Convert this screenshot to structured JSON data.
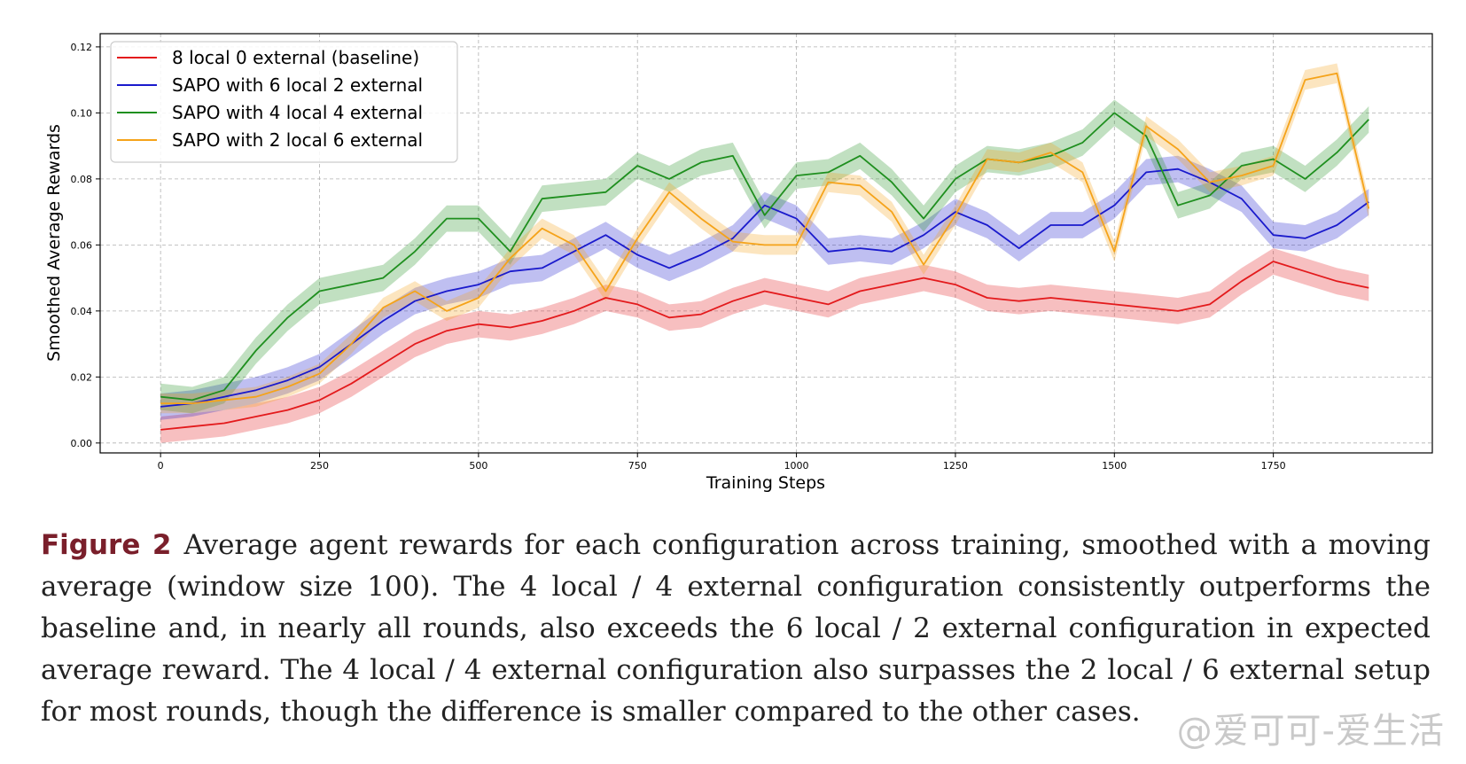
{
  "chart_data": {
    "type": "line",
    "xlabel": "Training Steps",
    "ylabel": "Smoothed Average Rewards",
    "xlim": [
      -95,
      2000
    ],
    "ylim": [
      -0.003,
      0.124
    ],
    "xticks": [
      0,
      250,
      500,
      750,
      1000,
      1250,
      1500,
      1750
    ],
    "xtick_labels": [
      "0",
      "250",
      "500",
      "750",
      "1000",
      "1250",
      "1500",
      "1750"
    ],
    "yticks": [
      0.0,
      0.02,
      0.04,
      0.06,
      0.08,
      0.1,
      0.12
    ],
    "ytick_labels": [
      "0.00",
      "0.02",
      "0.04",
      "0.06",
      "0.08",
      "0.10",
      "0.12"
    ],
    "grid": true,
    "legend_position": "top-left",
    "series": [
      {
        "name": "8 local 0 external (baseline)",
        "color": "#e31a1c",
        "x": [
          0,
          50,
          100,
          150,
          200,
          250,
          300,
          350,
          400,
          450,
          500,
          550,
          600,
          650,
          700,
          750,
          800,
          850,
          900,
          950,
          1000,
          1050,
          1100,
          1150,
          1200,
          1250,
          1300,
          1350,
          1400,
          1450,
          1500,
          1550,
          1600,
          1650,
          1700,
          1750,
          1800,
          1850,
          1900
        ],
        "y": [
          0.004,
          0.005,
          0.006,
          0.008,
          0.01,
          0.013,
          0.018,
          0.024,
          0.03,
          0.034,
          0.036,
          0.035,
          0.037,
          0.04,
          0.044,
          0.042,
          0.038,
          0.039,
          0.043,
          0.046,
          0.044,
          0.042,
          0.046,
          0.048,
          0.05,
          0.048,
          0.044,
          0.043,
          0.044,
          0.043,
          0.042,
          0.041,
          0.04,
          0.042,
          0.049,
          0.055,
          0.052,
          0.049,
          0.047
        ],
        "band": 0.004
      },
      {
        "name": "SAPO with 6 local 2 external",
        "color": "#1a1acc",
        "x": [
          0,
          50,
          100,
          150,
          200,
          250,
          300,
          350,
          400,
          450,
          500,
          550,
          600,
          650,
          700,
          750,
          800,
          850,
          900,
          950,
          1000,
          1050,
          1100,
          1150,
          1200,
          1250,
          1300,
          1350,
          1400,
          1450,
          1500,
          1550,
          1600,
          1650,
          1700,
          1750,
          1800,
          1850,
          1900
        ],
        "y": [
          0.011,
          0.012,
          0.014,
          0.016,
          0.019,
          0.023,
          0.03,
          0.037,
          0.043,
          0.046,
          0.048,
          0.052,
          0.053,
          0.058,
          0.063,
          0.057,
          0.053,
          0.057,
          0.062,
          0.072,
          0.068,
          0.058,
          0.059,
          0.058,
          0.063,
          0.07,
          0.066,
          0.059,
          0.066,
          0.066,
          0.072,
          0.082,
          0.083,
          0.079,
          0.074,
          0.063,
          0.062,
          0.066,
          0.073
        ],
        "band": 0.004
      },
      {
        "name": "SAPO with 4 local 4 external",
        "color": "#1f8f1f",
        "x": [
          0,
          50,
          100,
          150,
          200,
          250,
          300,
          350,
          400,
          450,
          500,
          550,
          600,
          650,
          700,
          750,
          800,
          850,
          900,
          950,
          1000,
          1050,
          1100,
          1150,
          1200,
          1250,
          1300,
          1350,
          1400,
          1450,
          1500,
          1550,
          1600,
          1650,
          1700,
          1750,
          1800,
          1850,
          1900
        ],
        "y": [
          0.014,
          0.013,
          0.016,
          0.028,
          0.038,
          0.046,
          0.048,
          0.05,
          0.058,
          0.068,
          0.068,
          0.058,
          0.074,
          0.075,
          0.076,
          0.084,
          0.08,
          0.085,
          0.087,
          0.069,
          0.081,
          0.082,
          0.087,
          0.079,
          0.068,
          0.08,
          0.086,
          0.085,
          0.087,
          0.091,
          0.1,
          0.093,
          0.072,
          0.075,
          0.084,
          0.086,
          0.08,
          0.088,
          0.098
        ],
        "band": 0.004
      },
      {
        "name": "SAPO with 2 local 6 external",
        "color": "#f5a31a",
        "x": [
          0,
          50,
          100,
          150,
          200,
          250,
          300,
          350,
          400,
          450,
          500,
          550,
          600,
          650,
          700,
          750,
          800,
          850,
          900,
          950,
          1000,
          1050,
          1100,
          1150,
          1200,
          1250,
          1300,
          1350,
          1400,
          1450,
          1500,
          1550,
          1600,
          1650,
          1700,
          1750,
          1800,
          1850,
          1900
        ],
        "y": [
          0.012,
          0.012,
          0.013,
          0.014,
          0.017,
          0.021,
          0.03,
          0.041,
          0.046,
          0.04,
          0.044,
          0.056,
          0.065,
          0.06,
          0.046,
          0.062,
          0.076,
          0.068,
          0.061,
          0.06,
          0.06,
          0.079,
          0.078,
          0.07,
          0.054,
          0.069,
          0.086,
          0.085,
          0.088,
          0.082,
          0.058,
          0.096,
          0.089,
          0.079,
          0.081,
          0.084,
          0.11,
          0.112,
          0.071
        ],
        "band": 0.003
      }
    ]
  },
  "caption": {
    "label": "Figure 2",
    "text": "Average agent rewards for each configuration across training, smoothed with a moving average (window size 100). The 4 local / 4 external configuration consistently outperforms the baseline and, in nearly all rounds, also exceeds the 6 local / 2 external configuration in expected average reward. The 4 local / 4 external configuration also surpasses the 2 local / 6 external setup for most rounds, though the difference is smaller compared to the other cases."
  },
  "watermark": "@爱可可-爱生活"
}
